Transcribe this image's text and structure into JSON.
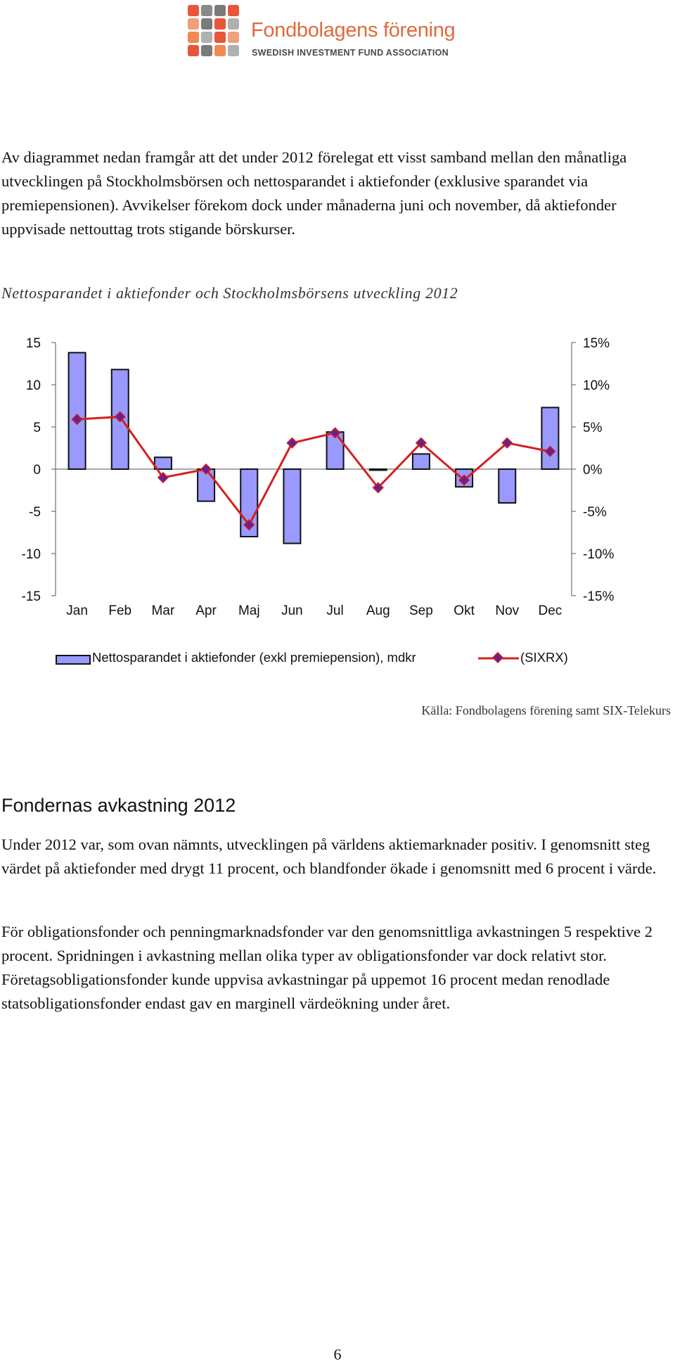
{
  "logo": {
    "name": "Fondbolagens förening",
    "subtitle": "SWEDISH INVESTMENT FUND ASSOCIATION",
    "tile_colors": [
      "#e8563a",
      "#8a8a8a",
      "#7a7a7a",
      "#e8563a",
      "#f0a07a",
      "#7a7a7a",
      "#e8563a",
      "#b0b0b0",
      "#f08a50",
      "#b0b0b0",
      "#e8563a",
      "#f0a07a",
      "#e8563a",
      "#7a7a7a",
      "#f08a50",
      "#b0b0b0"
    ]
  },
  "intro_paragraph": "Av diagrammet nedan framgår att det under 2012 förelegat ett visst samband mellan den månatliga utvecklingen på Stockholmsbörsen och nettosparandet i aktiefonder (exklusive sparandet via premiepensionen). Avvikelser förekom dock under månaderna juni och november, då aktiefonder uppvisade nettouttag trots stigande börskurser.",
  "chart_caption": "Nettosparandet i aktiefonder och Stockholmsbörsens utveckling 2012",
  "chart_data": {
    "type": "bar",
    "title": "",
    "categories": [
      "Jan",
      "Feb",
      "Mar",
      "Apr",
      "Maj",
      "Jun",
      "Jul",
      "Aug",
      "Sep",
      "Okt",
      "Nov",
      "Dec"
    ],
    "series": [
      {
        "name": "Nettosparandet i aktiefonder (exkl premiepension), mdkr",
        "type": "bar",
        "axis": "left",
        "color": "#9999ff",
        "values": [
          13.8,
          11.8,
          1.4,
          -3.8,
          -8.0,
          -8.8,
          4.4,
          0.0,
          1.8,
          -2.1,
          -4.0,
          7.3
        ]
      },
      {
        "name": "(SIXRX)",
        "type": "line",
        "axis": "right",
        "color": "#d42020",
        "marker_color": "#6a1f8f",
        "values": [
          5.9,
          6.2,
          -1.0,
          0.0,
          -6.6,
          3.1,
          4.3,
          -2.2,
          3.1,
          -1.3,
          3.1,
          2.1
        ]
      }
    ],
    "y_left": {
      "ticks": [
        "15",
        "10",
        "5",
        "0",
        "-5",
        "-10",
        "-15"
      ],
      "range": [
        -15,
        15
      ]
    },
    "y_right": {
      "ticks": [
        "15%",
        "10%",
        "5%",
        "0%",
        "-5%",
        "-10%",
        "-15%"
      ],
      "range": [
        -15,
        15
      ]
    },
    "grid": false,
    "legend_position": "bottom"
  },
  "source_note": "Källa: Fondbolagens förening samt SIX-Telekurs",
  "section_heading": "Fondernas avkastning 2012",
  "body_paragraphs": [
    "Under 2012 var, som ovan nämnts, utvecklingen på världens aktiemarknader positiv. I genomsnitt steg värdet på aktiefonder med drygt 11 procent, och blandfonder ökade i genomsnitt med 6 procent i värde.",
    "För obligationsfonder och penningmarknadsfonder var den genomsnittliga avkastningen 5 respektive 2 procent. Spridningen i avkastning mellan olika typer av obligationsfonder var dock relativt stor. Företagsobligationsfonder kunde uppvisa avkastningar på uppemot 16 procent medan renodlade statsobligationsfonder endast gav en marginell värdeökning under året."
  ],
  "page_number": "6"
}
